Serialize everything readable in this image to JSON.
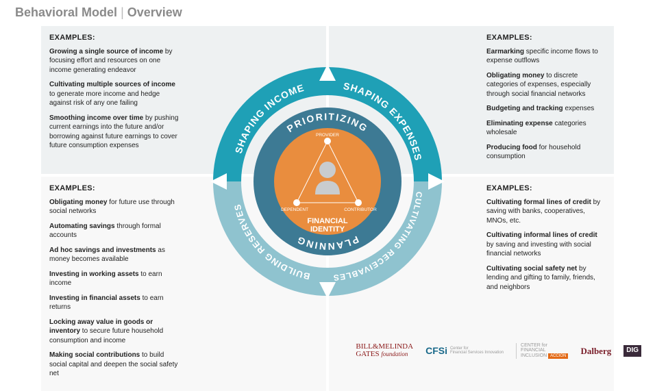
{
  "title_a": "Behavioral Model",
  "title_b": "Overview",
  "colors": {
    "outer_tl": "#1fa0b6",
    "outer_tr": "#1fa0b6",
    "outer_bl": "#8fc3cf",
    "outer_br": "#8fc3cf",
    "mid": "#3d7a94",
    "core": "#e98d3e",
    "person": "#9aa0a3",
    "bg_top": "#eef1f2",
    "bg_bot": "#f8f8f8",
    "title": "#8a8a8a"
  },
  "ring_outer": {
    "tl": "SHAPING INCOME",
    "tr": "SHAPING EXPENSES",
    "bl": "BUILDING RESERVES",
    "br": "CULTIVATING RECEIVABLES"
  },
  "ring_mid": {
    "top": "PRIORITIZING",
    "bottom": "PLANNING"
  },
  "core": {
    "label": "FINANCIAL\nIDENTITY",
    "top": "PROVIDER",
    "bl": "DEPENDENT",
    "br": "CONTRIBUTOR"
  },
  "quads": {
    "tl": {
      "title": "EXAMPLES:",
      "items": [
        {
          "b": "Growing a single source of income",
          "r": " by focusing effort and resources on one income generating endeavor"
        },
        {
          "b": "Cultivating multiple sources of income",
          "r": " to generate more income and hedge against risk of any one failing"
        },
        {
          "b": "Smoothing income over time",
          "r": " by pushing current earnings into the future and/or borrowing against future earnings to cover future consumption expenses"
        }
      ]
    },
    "tr": {
      "title": "EXAMPLES:",
      "items": [
        {
          "b": "Earmarking",
          "r": " specific income flows to expense outflows"
        },
        {
          "b": "Obligating money",
          "r": " to discrete categories of expenses, especially through social financial networks"
        },
        {
          "b": "Budgeting and tracking",
          "r": " expenses"
        },
        {
          "b": "Eliminating expense",
          "r": " categories wholesale"
        },
        {
          "b": "Producing food",
          "r": " for household consumption"
        }
      ]
    },
    "bl": {
      "title": "EXAMPLES:",
      "items": [
        {
          "b": "Obligating money",
          "r": " for future use through social networks"
        },
        {
          "b": "Automating savings",
          "r": " through formal accounts"
        },
        {
          "b": "Ad hoc savings and investments",
          "r": " as money becomes available"
        },
        {
          "b": "Investing in working assets",
          "r": " to earn income"
        },
        {
          "b": "Investing in financial assets",
          "r": " to earn returns"
        },
        {
          "b": "Locking away value in goods or inventory",
          "r": " to secure future household consumption and income"
        },
        {
          "b": "Making social contributions",
          "r": " to build social capital and deepen the social safety net"
        }
      ]
    },
    "br": {
      "title": "EXAMPLES:",
      "items": [
        {
          "b": "Cultivating formal lines of credit",
          "r": " by saving with banks, cooperatives, MNOs, etc."
        },
        {
          "b": "Cultivating informal lines of credit",
          "r": " by saving and investing with social financial networks"
        },
        {
          "b": "Cultivating social safety net",
          "r": " by lending and gifting to family, friends, and neighbors"
        }
      ]
    }
  },
  "footer": {
    "b1a": "BILL&MELINDA",
    "b1b": "GATES",
    "b1c": "foundation",
    "b2": "CFSi",
    "b2s": "Center for\nFinancial Services Innovation",
    "b3a": "CENTER for",
    "b3b": "FINANCIAL",
    "b3c": "INCLUSION",
    "b3d": "ACCION",
    "b4": "Dalberg",
    "b5": "DIG"
  }
}
